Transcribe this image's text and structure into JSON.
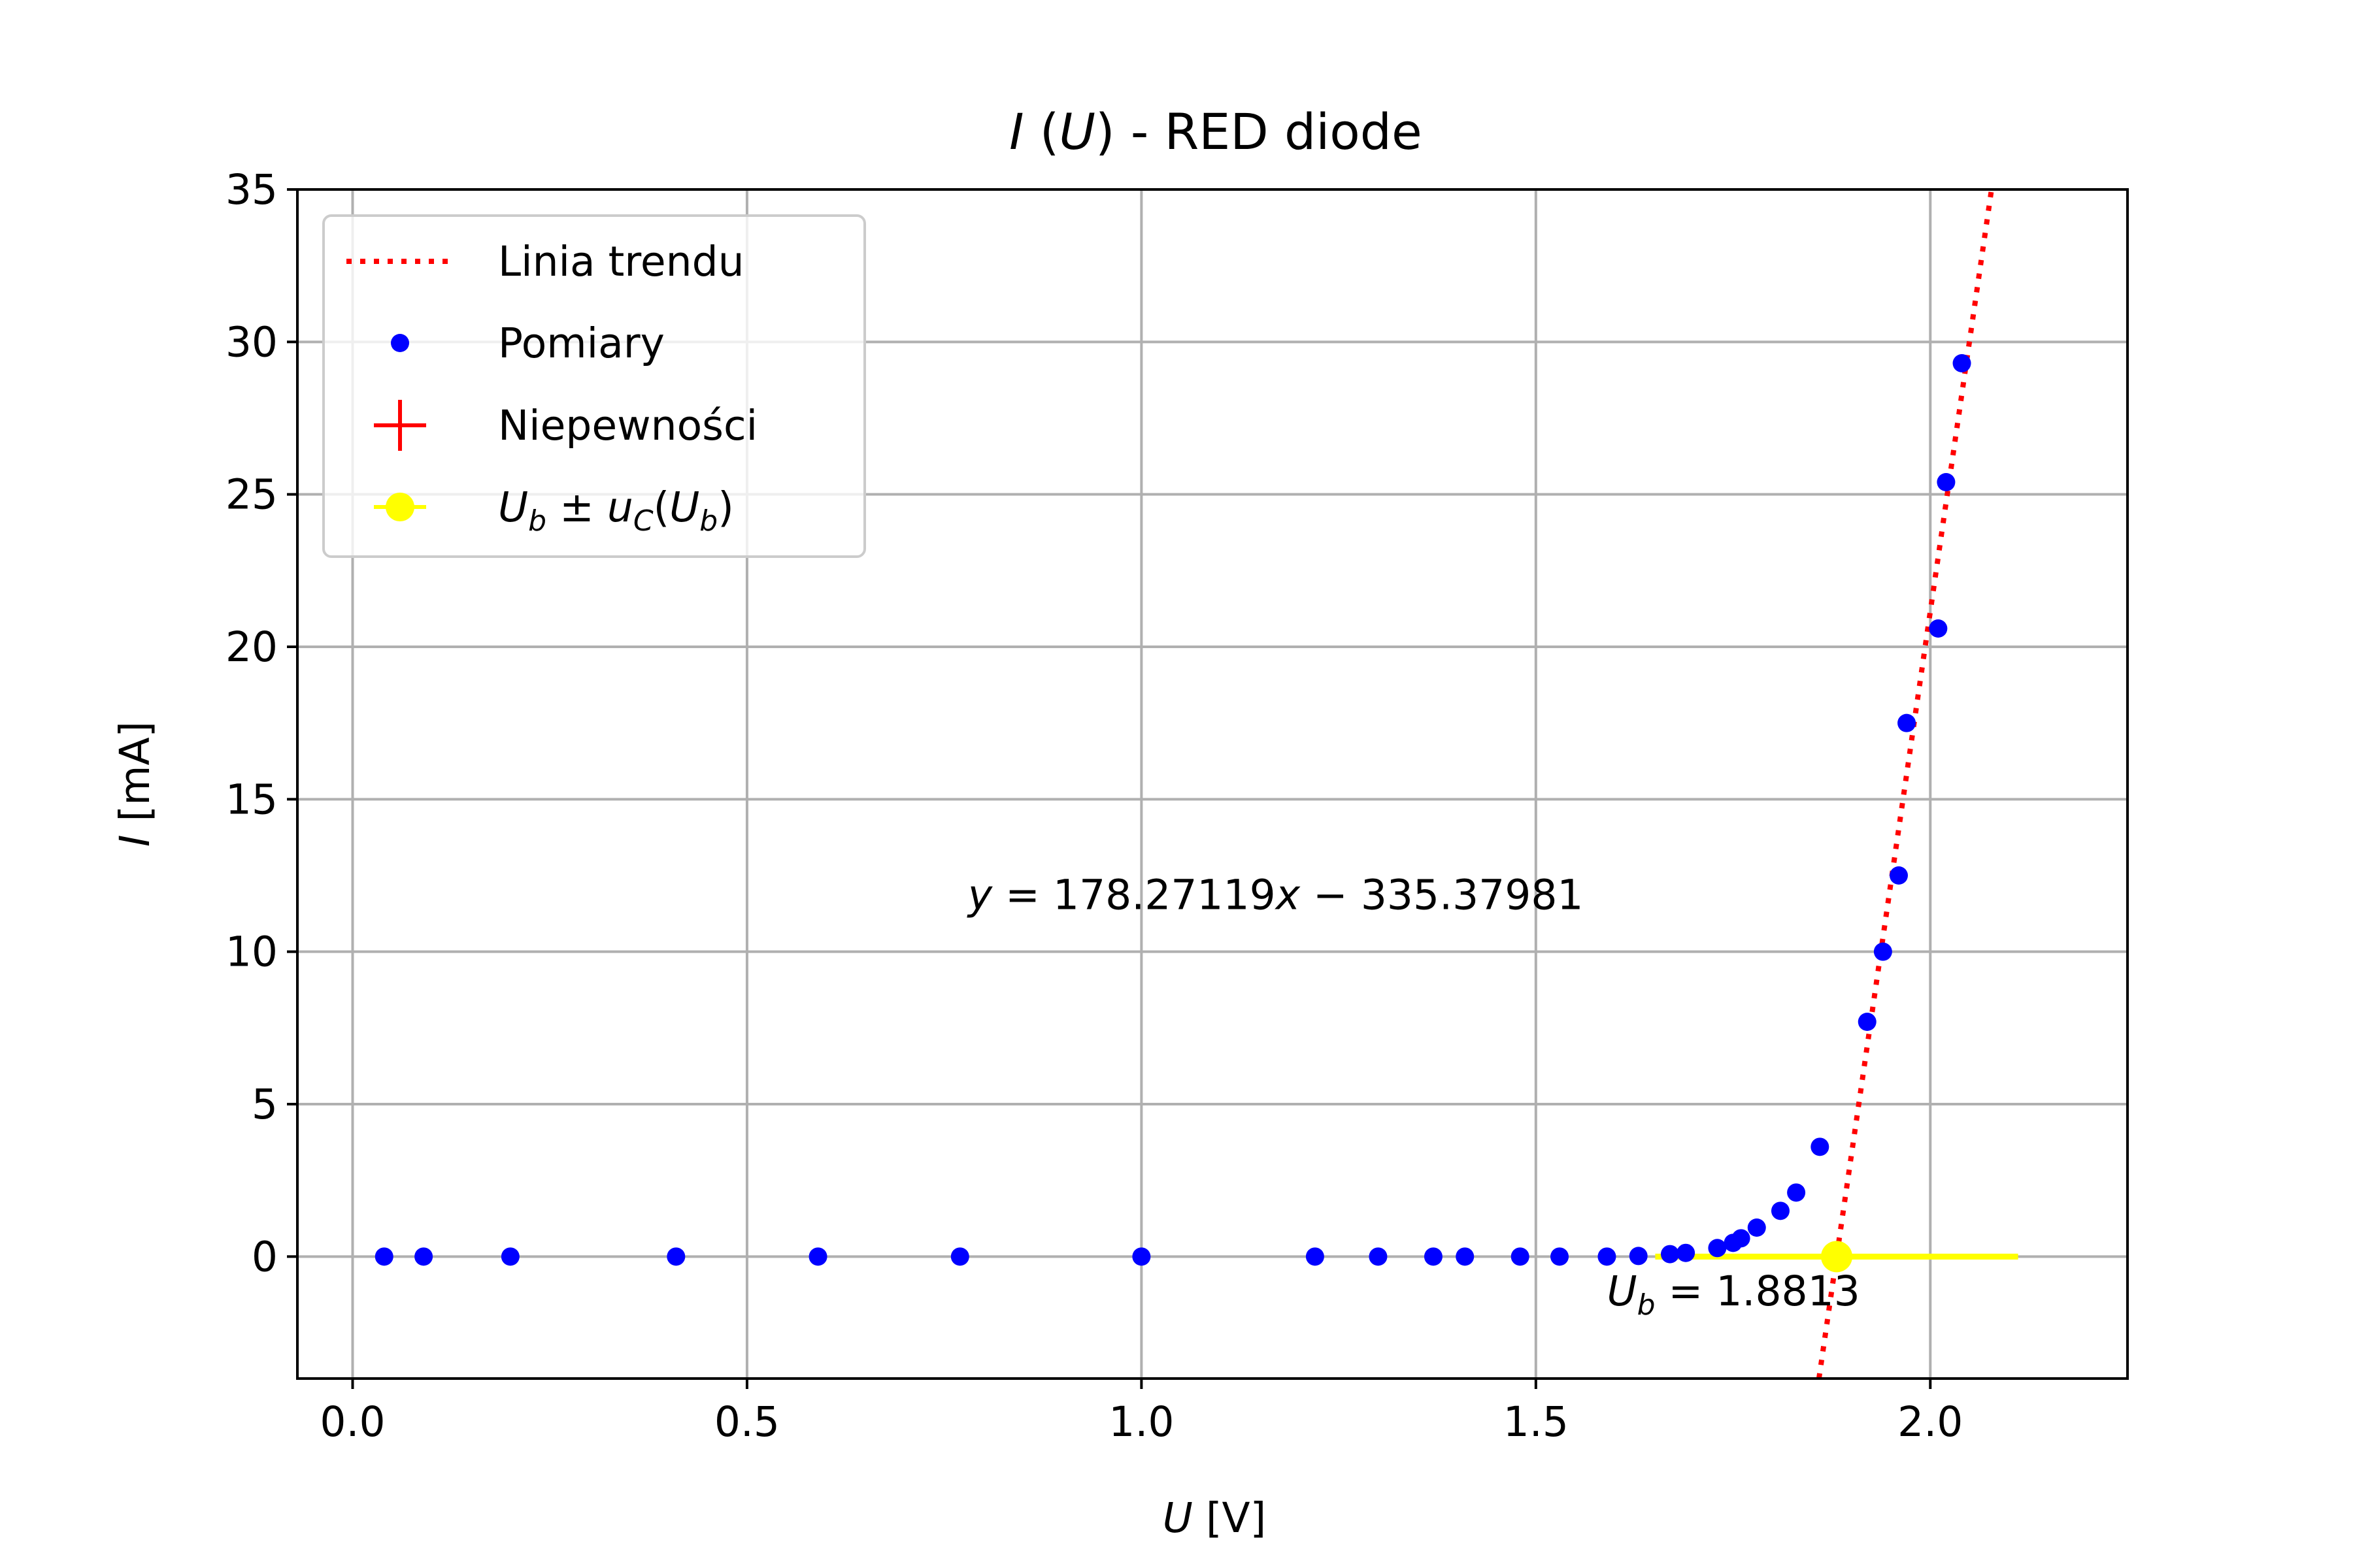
{
  "chart_data": {
    "type": "scatter",
    "title": "I (U) - RED diode",
    "title_parts": {
      "var_i": "I",
      "open": " (",
      "var_u": "U",
      "close": ")",
      "rest": " - RED diode"
    },
    "xlabel": "U [V]",
    "xlabel_parts": {
      "var": "U",
      "unit": "[V]"
    },
    "ylabel": "I [mA]",
    "ylabel_parts": {
      "var": "I",
      "unit": "[mA]"
    },
    "xlim": [
      -0.07,
      2.25
    ],
    "ylim": [
      -4,
      35
    ],
    "x_ticks": [
      0.0,
      0.5,
      1.0,
      1.5,
      2.0
    ],
    "x_tick_labels": [
      "0.0",
      "0.5",
      "1.0",
      "1.5",
      "2.0"
    ],
    "y_ticks": [
      0,
      5,
      10,
      15,
      20,
      25,
      30,
      35
    ],
    "y_tick_labels": [
      "0",
      "5",
      "10",
      "15",
      "20",
      "25",
      "30",
      "35"
    ],
    "grid": true,
    "legend_position": "top-left",
    "colors": {
      "trend": "#ff0000",
      "points": "#0000ff",
      "uncertainty": "#ff0000",
      "ub": "#ffff00"
    },
    "series": [
      {
        "name": "Linia trendu",
        "kind": "line",
        "style": "dotted",
        "slope": 178.27119,
        "intercept": -335.37981
      },
      {
        "name": "Pomiary",
        "kind": "scatter",
        "points": [
          [
            0.04,
            0.0
          ],
          [
            0.09,
            0.0
          ],
          [
            0.2,
            0.0
          ],
          [
            0.41,
            0.0
          ],
          [
            0.59,
            0.0
          ],
          [
            0.77,
            0.0
          ],
          [
            1.0,
            0.0
          ],
          [
            1.22,
            0.0
          ],
          [
            1.3,
            0.0
          ],
          [
            1.37,
            0.0
          ],
          [
            1.41,
            0.0
          ],
          [
            1.48,
            0.0
          ],
          [
            1.53,
            0.0
          ],
          [
            1.59,
            0.0
          ],
          [
            1.63,
            0.02
          ],
          [
            1.67,
            0.08
          ],
          [
            1.69,
            0.12
          ],
          [
            1.73,
            0.28
          ],
          [
            1.75,
            0.45
          ],
          [
            1.76,
            0.6
          ],
          [
            1.78,
            0.95
          ],
          [
            1.81,
            1.5
          ],
          [
            1.83,
            2.1
          ],
          [
            1.86,
            3.6
          ],
          [
            1.92,
            7.7
          ],
          [
            1.94,
            10.0
          ],
          [
            1.96,
            12.5
          ],
          [
            1.97,
            17.5
          ],
          [
            2.01,
            20.6
          ],
          [
            2.02,
            25.4
          ],
          [
            2.04,
            29.3
          ]
        ]
      },
      {
        "name": "Niepewności",
        "kind": "errorbar"
      },
      {
        "name": "U_b ± u_C(U_b)",
        "kind": "errorbar",
        "x": 1.8813,
        "y": 0,
        "xerr": 0.23
      }
    ],
    "legend": [
      {
        "label": "Linia trendu",
        "marker": "dotted-line"
      },
      {
        "label": "Pomiary",
        "marker": "dot"
      },
      {
        "label": "Niepewności",
        "marker": "plus"
      },
      {
        "label": "",
        "marker": "yellow-errorbar",
        "math": {
          "U": "U",
          "b": "b",
          "pm": " ± ",
          "u": "u",
          "C": "C",
          "open": "(",
          "U2": "U",
          "b2": "b",
          "close": ")"
        }
      }
    ],
    "annotations": {
      "equation": {
        "y": "y",
        "eq": " = 178.27119",
        "x": "x",
        "rest": " − 335.37981",
        "at": [
          0.78,
          11.4
        ]
      },
      "ub": {
        "U": "U",
        "b": "b",
        "rest": " = 1.8813",
        "at": [
          1.59,
          -1.6
        ]
      }
    }
  }
}
